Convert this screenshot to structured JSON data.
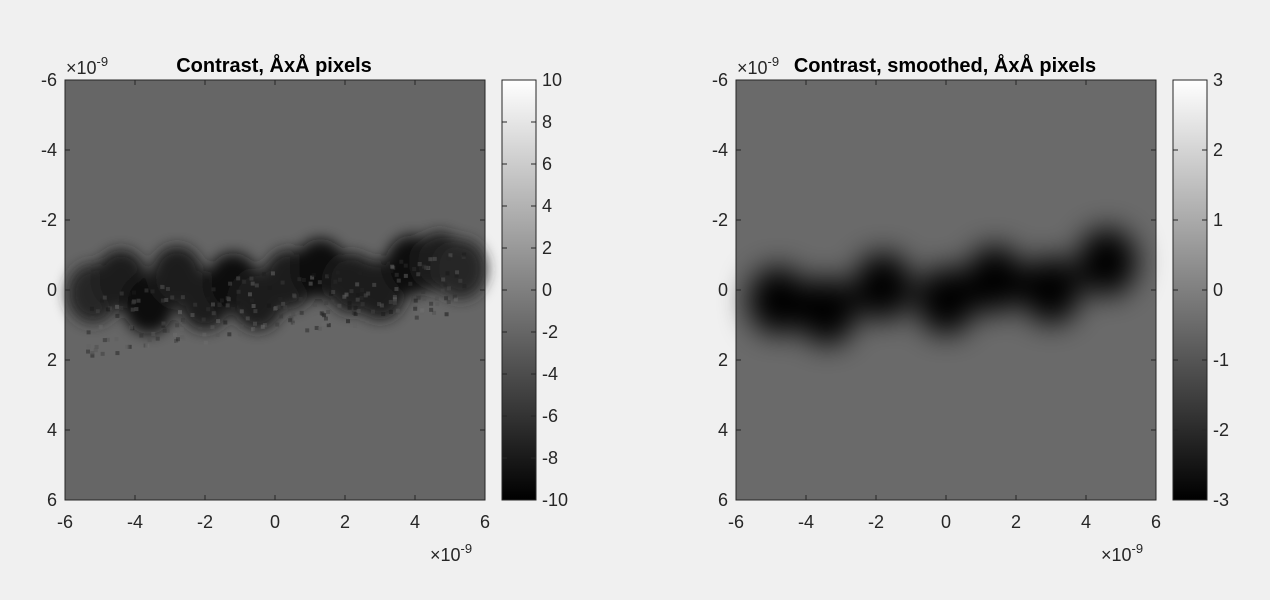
{
  "figure": {
    "background": "#f0f0f0",
    "image_colormap": "gray"
  },
  "chart_data": [
    {
      "type": "heatmap",
      "title": "Contrast, ÅxÅ pixels",
      "xlim": [
        -6,
        6
      ],
      "ylim": [
        -6,
        6
      ],
      "y_direction": "reversed",
      "x_ticks": [
        -6,
        -4,
        -2,
        0,
        2,
        4,
        6
      ],
      "y_ticks": [
        -6,
        -4,
        -2,
        0,
        2,
        4,
        6
      ],
      "x_exponent": "×10",
      "x_exponent_power": "-9",
      "y_exponent": "×10",
      "y_exponent_power": "-9",
      "colorbar": {
        "clim": [
          -10,
          10
        ],
        "ticks": [
          10,
          8,
          6,
          4,
          2,
          0,
          -2,
          -4,
          -6,
          -8,
          -10
        ]
      },
      "background_value": -2,
      "blobs": [
        {
          "x": -5.2,
          "y": 0.1,
          "value": -7
        },
        {
          "x": -4.4,
          "y": -0.3,
          "value": -8
        },
        {
          "x": -3.6,
          "y": 0.4,
          "value": -9
        },
        {
          "x": -2.8,
          "y": -0.4,
          "value": -8
        },
        {
          "x": -2.0,
          "y": 0.3,
          "value": -8
        },
        {
          "x": -1.2,
          "y": -0.2,
          "value": -9
        },
        {
          "x": -0.5,
          "y": 0.3,
          "value": -8
        },
        {
          "x": 0.4,
          "y": -0.3,
          "value": -8
        },
        {
          "x": 1.3,
          "y": -0.6,
          "value": -9
        },
        {
          "x": 2.2,
          "y": -0.2,
          "value": -8
        },
        {
          "x": 3.0,
          "y": 0.0,
          "value": -8
        },
        {
          "x": 3.9,
          "y": -0.7,
          "value": -9
        },
        {
          "x": 4.7,
          "y": -0.8,
          "value": -8
        },
        {
          "x": 5.3,
          "y": -0.6,
          "value": -7
        }
      ]
    },
    {
      "type": "heatmap",
      "title": "Contrast, smoothed, ÅxÅ pixels",
      "xlim": [
        -6,
        6
      ],
      "ylim": [
        -6,
        6
      ],
      "y_direction": "reversed",
      "x_ticks": [
        -6,
        -4,
        -2,
        0,
        2,
        4,
        6
      ],
      "y_ticks": [
        -6,
        -4,
        -2,
        0,
        2,
        4,
        6
      ],
      "x_exponent": "×10",
      "x_exponent_power": "-9",
      "y_exponent": "×10",
      "y_exponent_power": "-9",
      "colorbar": {
        "clim": [
          -3,
          3
        ],
        "ticks": [
          3,
          2,
          1,
          0,
          -1,
          -2,
          -3
        ]
      },
      "background_value": -0.5,
      "blobs": [
        {
          "x": -4.8,
          "y": 0.3,
          "value": -3
        },
        {
          "x": -3.4,
          "y": 0.6,
          "value": -3
        },
        {
          "x": -1.8,
          "y": -0.1,
          "value": -3
        },
        {
          "x": 0.0,
          "y": 0.3,
          "value": -3
        },
        {
          "x": 1.4,
          "y": -0.3,
          "value": -3
        },
        {
          "x": 3.0,
          "y": 0.0,
          "value": -3
        },
        {
          "x": 4.6,
          "y": -0.8,
          "value": -3
        }
      ]
    }
  ]
}
